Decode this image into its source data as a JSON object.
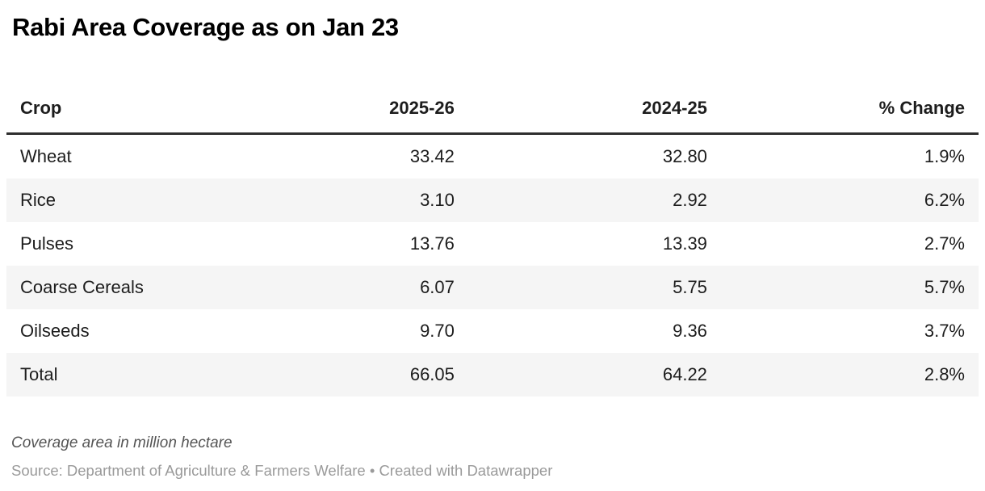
{
  "title": "Rabi Area Coverage as on Jan 23",
  "chart_data": {
    "type": "table",
    "title": "Rabi Area Coverage as on Jan 23",
    "columns": [
      "Crop",
      "2025-26",
      "2024-25",
      "% Change"
    ],
    "rows": [
      [
        "Wheat",
        "33.42",
        "32.80",
        "1.9%"
      ],
      [
        "Rice",
        "3.10",
        "2.92",
        "6.2%"
      ],
      [
        "Pulses",
        "13.76",
        "13.39",
        "2.7%"
      ],
      [
        "Coarse Cereals",
        "6.07",
        "5.75",
        "5.7%"
      ],
      [
        "Oilseeds",
        "9.70",
        "9.36",
        "3.7%"
      ],
      [
        "Total",
        "66.05",
        "64.22",
        "2.8%"
      ]
    ],
    "categories": [
      "Wheat",
      "Rice",
      "Pulses",
      "Coarse Cereals",
      "Oilseeds",
      "Total"
    ],
    "series": [
      {
        "name": "2025-26",
        "values": [
          33.42,
          3.1,
          13.76,
          6.07,
          9.7,
          66.05
        ]
      },
      {
        "name": "2024-25",
        "values": [
          32.8,
          2.92,
          13.39,
          5.75,
          9.36,
          64.22
        ]
      },
      {
        "name": "% Change",
        "values": [
          1.9,
          6.2,
          2.7,
          5.7,
          3.7,
          2.8
        ]
      }
    ],
    "notes": "Coverage area in million hectare",
    "source": "Source: Department of Agriculture & Farmers Welfare • Created with Datawrapper",
    "layout": {
      "zebra_striping": true,
      "header_rule": "thick dark bottom border",
      "numeric_alignment": "right"
    }
  },
  "colors": {
    "title_text": "#000000",
    "body_text": "#1d1d1d",
    "header_rule": "#2e2e2e",
    "zebra_stripe": "#f5f5f5",
    "notes_text": "#555555",
    "source_text": "#9a9a9a",
    "background": "#ffffff"
  }
}
